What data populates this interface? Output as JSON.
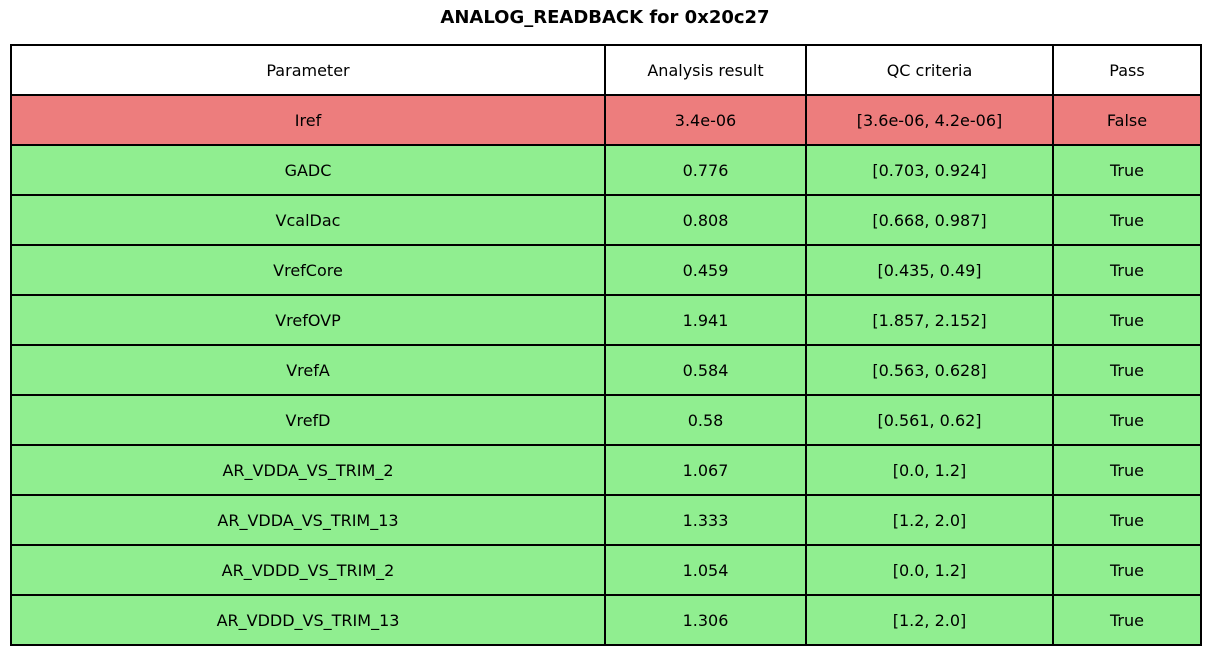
{
  "chart_data": {
    "type": "table",
    "title": "ANALOG_READBACK for 0x20c27",
    "columns": [
      "Parameter",
      "Analysis result",
      "QC criteria",
      "Pass"
    ],
    "rows": [
      {
        "parameter": "Iref",
        "analysis_result": "3.4e-06",
        "qc_criteria": "[3.6e-06, 4.2e-06]",
        "pass": "False"
      },
      {
        "parameter": "GADC",
        "analysis_result": "0.776",
        "qc_criteria": "[0.703, 0.924]",
        "pass": "True"
      },
      {
        "parameter": "VcalDac",
        "analysis_result": "0.808",
        "qc_criteria": "[0.668, 0.987]",
        "pass": "True"
      },
      {
        "parameter": "VrefCore",
        "analysis_result": "0.459",
        "qc_criteria": "[0.435, 0.49]",
        "pass": "True"
      },
      {
        "parameter": "VrefOVP",
        "analysis_result": "1.941",
        "qc_criteria": "[1.857, 2.152]",
        "pass": "True"
      },
      {
        "parameter": "VrefA",
        "analysis_result": "0.584",
        "qc_criteria": "[0.563, 0.628]",
        "pass": "True"
      },
      {
        "parameter": "VrefD",
        "analysis_result": "0.58",
        "qc_criteria": "[0.561, 0.62]",
        "pass": "True"
      },
      {
        "parameter": "AR_VDDA_VS_TRIM_2",
        "analysis_result": "1.067",
        "qc_criteria": "[0.0, 1.2]",
        "pass": "True"
      },
      {
        "parameter": "AR_VDDA_VS_TRIM_13",
        "analysis_result": "1.333",
        "qc_criteria": "[1.2, 2.0]",
        "pass": "True"
      },
      {
        "parameter": "AR_VDDD_VS_TRIM_2",
        "analysis_result": "1.054",
        "qc_criteria": "[0.0, 1.2]",
        "pass": "True"
      },
      {
        "parameter": "AR_VDDD_VS_TRIM_13",
        "analysis_result": "1.306",
        "qc_criteria": "[1.2, 2.0]",
        "pass": "True"
      }
    ]
  },
  "colors": {
    "fail_row": "#ed7d7d",
    "pass_row": "#90ee90",
    "header_row": "#ffffff",
    "border": "#000000",
    "text": "#000000"
  }
}
